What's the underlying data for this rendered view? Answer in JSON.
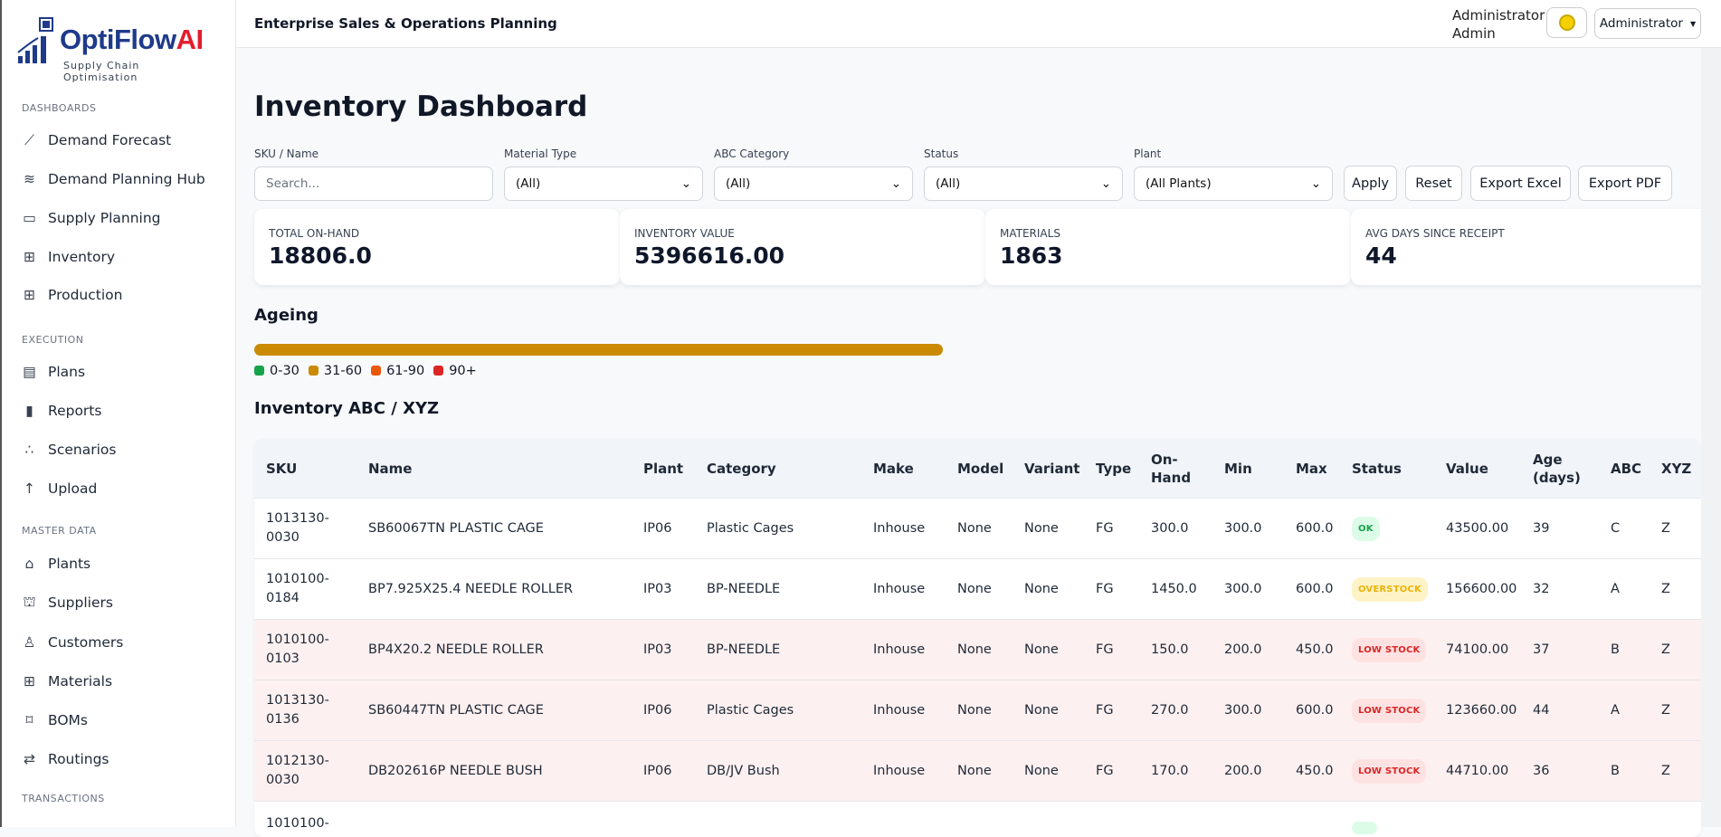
{
  "brand": {
    "name": "OptiFlow",
    "name_accent": "AI",
    "tagline": "Supply Chain Optimisation"
  },
  "sidebar": {
    "sections": [
      {
        "title": "DASHBOARDS",
        "items": [
          {
            "label": "Demand Forecast",
            "icon": "chart-line-icon"
          },
          {
            "label": "Demand Planning Hub",
            "icon": "layers-icon"
          },
          {
            "label": "Supply Planning",
            "icon": "columns-icon"
          },
          {
            "label": "Inventory",
            "icon": "grid-icon"
          },
          {
            "label": "Production",
            "icon": "grid-icon"
          }
        ]
      },
      {
        "title": "EXECUTION",
        "items": [
          {
            "label": "Plans",
            "icon": "window-icon"
          },
          {
            "label": "Reports",
            "icon": "bar-chart-icon"
          },
          {
            "label": "Scenarios",
            "icon": "nodes-icon"
          },
          {
            "label": "Upload",
            "icon": "arrow-up-icon"
          }
        ]
      },
      {
        "title": "MASTER DATA",
        "items": [
          {
            "label": "Plants",
            "icon": "building-icon"
          },
          {
            "label": "Suppliers",
            "icon": "person-icon"
          },
          {
            "label": "Customers",
            "icon": "user-icon"
          },
          {
            "label": "Materials",
            "icon": "grid-icon"
          },
          {
            "label": "BOMs",
            "icon": "bezier-icon"
          },
          {
            "label": "Routings",
            "icon": "routing-icon"
          }
        ]
      },
      {
        "title": "TRANSACTIONS",
        "items": []
      }
    ]
  },
  "header": {
    "title": "Enterprise Sales & Operations Planning",
    "user_line1": "Administrator",
    "user_line2": "Admin",
    "role_dropdown": "Administrator"
  },
  "page": {
    "title": "Inventory Dashboard"
  },
  "filters": {
    "sku_label": "SKU / Name",
    "sku_placeholder": "Search...",
    "material_type_label": "Material Type",
    "material_type_value": "(All)",
    "abc_label": "ABC Category",
    "abc_value": "(All)",
    "status_label": "Status",
    "status_value": "(All)",
    "plant_label": "Plant",
    "plant_value": "(All Plants)",
    "apply": "Apply",
    "reset": "Reset",
    "export_excel": "Export Excel",
    "export_pdf": "Export PDF"
  },
  "kpis": [
    {
      "label": "TOTAL ON-HAND",
      "value": "18806.0"
    },
    {
      "label": "INVENTORY VALUE",
      "value": "5396616.00"
    },
    {
      "label": "MATERIALS",
      "value": "1863"
    },
    {
      "label": "AVG DAYS SINCE RECEIPT",
      "value": "44"
    }
  ],
  "ageing": {
    "title": "Ageing",
    "buckets": [
      {
        "label": "0-30",
        "color": "#16a34a",
        "share": 0
      },
      {
        "label": "31-60",
        "color": "#ca8a04",
        "share": 1
      },
      {
        "label": "61-90",
        "color": "#ea580c",
        "share": 0
      },
      {
        "label": "90+",
        "color": "#dc2626",
        "share": 0
      }
    ]
  },
  "table": {
    "title": "Inventory ABC / XYZ",
    "columns": [
      "SKU",
      "Name",
      "Plant",
      "Category",
      "Make",
      "Model",
      "Variant",
      "Type",
      "On-Hand",
      "Min",
      "Max",
      "Status",
      "Value",
      "Age (days)",
      "ABC",
      "XYZ"
    ],
    "rows": [
      [
        "1013130-0030",
        "SB60067TN PLASTIC CAGE",
        "IP06",
        "Plastic Cages",
        "Inhouse",
        "None",
        "None",
        "FG",
        "300.0",
        "300.0",
        "600.0",
        "OK",
        "43500.00",
        "39",
        "C",
        "Z"
      ],
      [
        "1010100-0184",
        "BP7.925X25.4 NEEDLE ROLLER",
        "IP03",
        "BP-NEEDLE",
        "Inhouse",
        "None",
        "None",
        "FG",
        "1450.0",
        "300.0",
        "600.0",
        "OVERSTOCK",
        "156600.00",
        "32",
        "A",
        "Z"
      ],
      [
        "1010100-0103",
        "BP4X20.2 NEEDLE ROLLER",
        "IP03",
        "BP-NEEDLE",
        "Inhouse",
        "None",
        "None",
        "FG",
        "150.0",
        "200.0",
        "450.0",
        "LOW STOCK",
        "74100.00",
        "37",
        "B",
        "Z"
      ],
      [
        "1013130-0136",
        "SB60447TN PLASTIC CAGE",
        "IP06",
        "Plastic Cages",
        "Inhouse",
        "None",
        "None",
        "FG",
        "270.0",
        "300.0",
        "600.0",
        "LOW STOCK",
        "123660.00",
        "44",
        "A",
        "Z"
      ],
      [
        "1012130-0030",
        "DB202616P NEEDLE BUSH",
        "IP06",
        "DB/JV Bush",
        "Inhouse",
        "None",
        "None",
        "FG",
        "170.0",
        "200.0",
        "450.0",
        "LOW STOCK",
        "44710.00",
        "36",
        "B",
        "Z"
      ],
      [
        "1010100-",
        "",
        "",
        "",
        "",
        "",
        "",
        "",
        "",
        "",
        "",
        "",
        "",
        "",
        "",
        ""
      ]
    ]
  },
  "status_colors": {
    "OK": {
      "bg": "#dcfce7",
      "fg": "#16a34a"
    },
    "OVERSTOCK": {
      "bg": "#fef3c7",
      "fg": "#eab308"
    },
    "LOW STOCK": {
      "bg": "#fee2e2",
      "fg": "#dc2626"
    }
  }
}
